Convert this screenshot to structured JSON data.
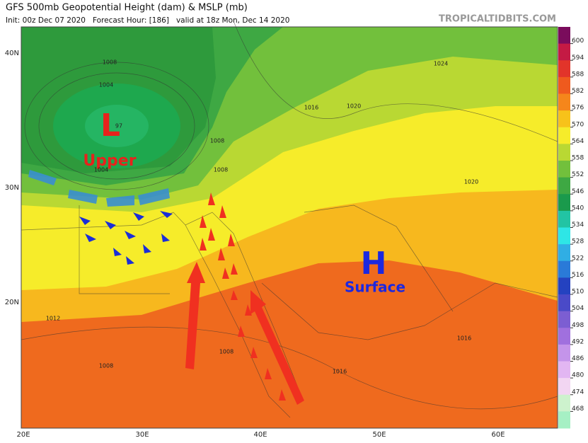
{
  "header": {
    "title": "GFS 500mb Geopotential Height (dam) & MSLP (mb)",
    "subtitle": "Init: 00z Dec 07 2020   Forecast Hour: [186]   valid at 18z Mon, Dec 14 2020",
    "source": "TROPICALTIDBITS.COM"
  },
  "map": {
    "lat_labels": [
      "40N",
      "30N",
      "20N"
    ],
    "lon_labels": [
      "20E",
      "30E",
      "40E",
      "50E",
      "60E"
    ],
    "isobar_labels": [
      "1008",
      "1004",
      "97",
      "1004",
      "1008",
      "1008",
      "1016",
      "1020",
      "1024",
      "1020",
      "1012",
      "1008",
      "1008",
      "1016",
      "1016"
    ],
    "annotations": {
      "low": "L",
      "low_label": "Upper",
      "high": "H",
      "high_label": "Surface"
    }
  },
  "colorbar": {
    "labels": [
      "600",
      "594",
      "588",
      "582",
      "576",
      "570",
      "564",
      "558",
      "552",
      "546",
      "540",
      "534",
      "528",
      "522",
      "516",
      "510",
      "504",
      "498",
      "492",
      "486",
      "480",
      "474",
      "468"
    ],
    "colors": [
      "#7a0c5c",
      "#c41a44",
      "#e2342a",
      "#ef5a1e",
      "#f5861b",
      "#f7c21a",
      "#f6ec2a",
      "#b9d833",
      "#72c03c",
      "#3ea843",
      "#1a9a4c",
      "#22c4a4",
      "#2ee6e6",
      "#30aee4",
      "#2a7ad8",
      "#2442c0",
      "#4a4ac8",
      "#7c5ed2",
      "#a070de",
      "#c494ea",
      "#e2b6f2",
      "#f2d6f2",
      "#cdf2cd",
      "#a6f0c4"
    ]
  }
}
